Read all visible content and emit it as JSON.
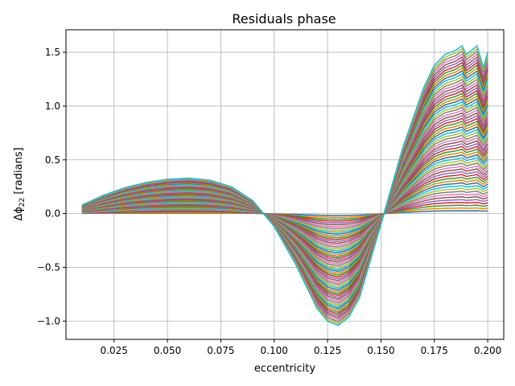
{
  "chart_data": {
    "type": "line",
    "title": "Residuals phase",
    "xlabel": "eccentricity",
    "ylabel": "Δϕ",
    "ylabel_sub": "22",
    "ylabel_unit": " [radians]",
    "xlim": [
      0.0025,
      0.2075
    ],
    "ylim": [
      -1.17,
      1.71
    ],
    "grid": true,
    "x_ticks": [
      0.025,
      0.05,
      0.075,
      0.1,
      0.125,
      0.15,
      0.175,
      0.2
    ],
    "x_tick_labels": [
      "0.025",
      "0.050",
      "0.075",
      "0.100",
      "0.125",
      "0.150",
      "0.175",
      "0.200"
    ],
    "y_ticks": [
      -1.0,
      -0.5,
      0.0,
      0.5,
      1.0,
      1.5
    ],
    "y_tick_labels": [
      "−1.0",
      "−0.5",
      "0.0",
      "0.5",
      "1.0",
      "1.5"
    ],
    "series_count": 60,
    "series_colors": [
      "#1f77b4",
      "#ff7f0e",
      "#2ca02c",
      "#d62728",
      "#9467bd",
      "#8c564b",
      "#e377c2",
      "#7f7f7f",
      "#bcbd22",
      "#17becf"
    ],
    "x": [
      0.01,
      0.02,
      0.03,
      0.04,
      0.05,
      0.06,
      0.07,
      0.08,
      0.09,
      0.1,
      0.11,
      0.12,
      0.125,
      0.13,
      0.135,
      0.14,
      0.15,
      0.16,
      0.17,
      0.175,
      0.18,
      0.185,
      0.188,
      0.19,
      0.195,
      0.198,
      0.2
    ],
    "outer_envelope": [
      0.08,
      0.17,
      0.24,
      0.29,
      0.32,
      0.33,
      0.31,
      0.25,
      0.12,
      -0.12,
      -0.47,
      -0.88,
      -1.0,
      -1.04,
      -0.96,
      -0.78,
      -0.1,
      0.6,
      1.17,
      1.38,
      1.48,
      1.52,
      1.56,
      1.48,
      1.56,
      1.36,
      1.5
    ],
    "inner_envelope": [
      0.0,
      0.0,
      0.0,
      0.0,
      0.0,
      0.0,
      0.0,
      0.0,
      0.0,
      0.0,
      0.0,
      0.0,
      0.0,
      0.0,
      0.0,
      0.0,
      0.0,
      0.0,
      0.0,
      0.0,
      0.0,
      0.0,
      0.0,
      0.0,
      0.0,
      0.0,
      0.0
    ]
  }
}
